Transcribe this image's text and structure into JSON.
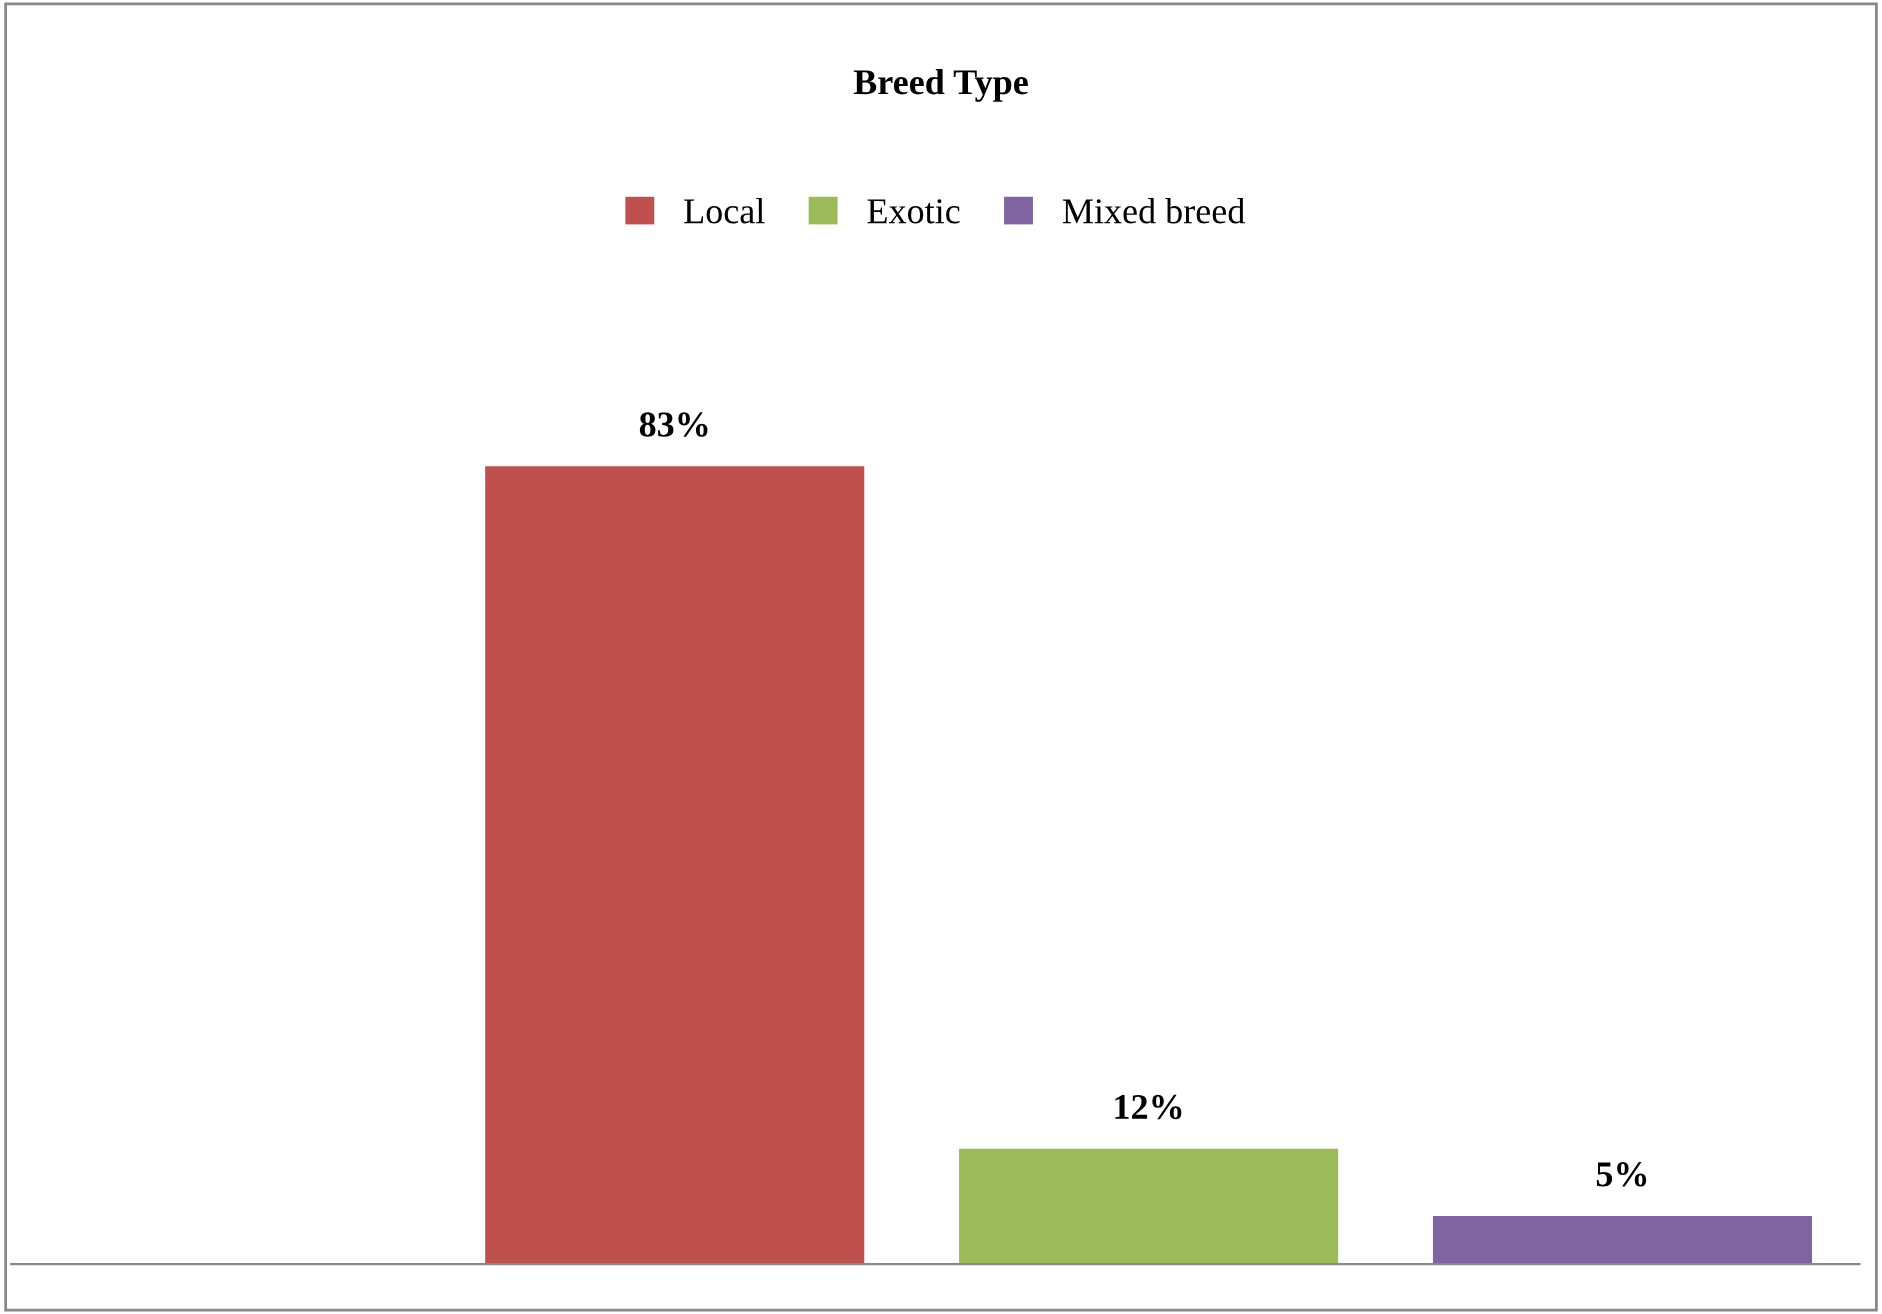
{
  "chart_data": {
    "type": "bar",
    "title": "Breed Type",
    "categories": [
      null,
      null,
      null
    ],
    "series": [
      {
        "name": "Local",
        "color": "#c0504d",
        "values": [
          83,
          null,
          null
        ],
        "value_labels": [
          "83%",
          null,
          null
        ]
      },
      {
        "name": "Exotic",
        "color": "#9bbb59",
        "values": [
          null,
          12,
          null
        ],
        "value_labels": [
          null,
          "12%",
          null
        ]
      },
      {
        "name": "Mixed breed",
        "color": "#8064a2",
        "values": [
          null,
          null,
          5
        ],
        "value_labels": [
          null,
          null,
          "5%"
        ]
      }
    ],
    "stacked": true,
    "legend": "top",
    "tick_labels": false
  }
}
